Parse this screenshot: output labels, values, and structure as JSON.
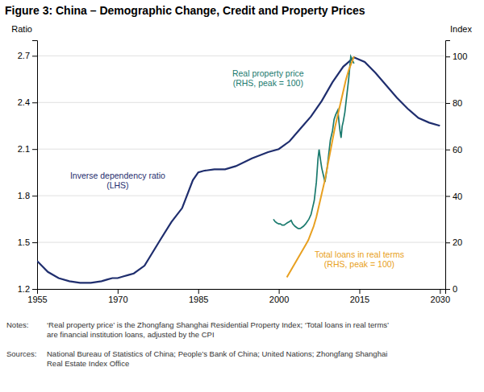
{
  "chart_data": {
    "type": "line",
    "title": "Figure 3: China – Demographic Change, Credit and Property Prices",
    "ylabel": "Ratio",
    "y2label": "Index",
    "xlim": [
      1955,
      2031
    ],
    "xticks": [
      1955,
      1970,
      1985,
      2000,
      2015,
      2030
    ],
    "ylim": [
      1.2,
      2.8
    ],
    "yticks": [
      1.2,
      1.5,
      1.8,
      2.1,
      2.4,
      2.7
    ],
    "y2lim": [
      0,
      107
    ],
    "y2ticks": [
      0,
      20,
      40,
      60,
      80,
      100
    ],
    "grid": true,
    "series": [
      {
        "name": "Inverse dependency ratio\n(LHS)",
        "color": "#1f2e6e",
        "axis": "y",
        "x": [
          1955,
          1957,
          1959,
          1961,
          1963,
          1965,
          1967,
          1968,
          1969,
          1970,
          1971,
          1972,
          1973,
          1975,
          1978,
          1980,
          1982,
          1984,
          1985,
          1986,
          1988,
          1990,
          1992,
          1995,
          1998,
          2000,
          2002,
          2004,
          2006,
          2008,
          2010,
          2012,
          2014,
          2016,
          2018,
          2020,
          2022,
          2024,
          2026,
          2028,
          2030
        ],
        "values": [
          1.38,
          1.31,
          1.27,
          1.25,
          1.24,
          1.24,
          1.25,
          1.26,
          1.27,
          1.27,
          1.28,
          1.29,
          1.3,
          1.35,
          1.52,
          1.63,
          1.72,
          1.9,
          1.95,
          1.96,
          1.97,
          1.97,
          1.99,
          2.04,
          2.08,
          2.1,
          2.15,
          2.23,
          2.31,
          2.41,
          2.53,
          2.63,
          2.69,
          2.66,
          2.59,
          2.51,
          2.43,
          2.36,
          2.3,
          2.27,
          2.25
        ]
      },
      {
        "name": "Real property price\n(RHS, peak = 100)",
        "color": "#1a7a6e",
        "axis": "y2",
        "x": [
          1999.0,
          1999.3,
          1999.6,
          2000.0,
          2000.3,
          2000.6,
          2001.0,
          2001.3,
          2001.6,
          2002.0,
          2002.3,
          2002.6,
          2003.0,
          2003.3,
          2003.6,
          2004.0,
          2004.3,
          2004.6,
          2005.0,
          2005.3,
          2005.6,
          2006.0,
          2006.3,
          2006.6,
          2007.0,
          2007.3,
          2007.5,
          2007.8,
          2008.0,
          2008.3,
          2008.6,
          2009.0,
          2009.3,
          2009.6,
          2010.0,
          2010.3,
          2010.6,
          2011.0,
          2011.2,
          2011.4,
          2011.6,
          2011.8,
          2012.0,
          2012.3,
          2012.6,
          2013.0,
          2013.2,
          2013.4,
          2013.6,
          2013.8,
          2014.0
        ],
        "values": [
          30,
          29,
          28.5,
          28,
          28,
          27.5,
          27.5,
          28,
          28.5,
          29,
          29.5,
          28,
          27,
          26.5,
          26,
          26,
          26.5,
          27,
          28,
          29,
          30,
          32,
          35,
          38,
          46,
          56,
          60,
          55,
          52,
          49,
          46,
          52,
          58,
          64,
          68,
          73,
          75,
          77,
          72,
          68,
          65,
          70,
          72,
          76,
          82,
          90,
          95,
          100,
          99,
          98,
          97
        ]
      },
      {
        "name": "Total loans in real terms\n(RHS, peak = 100)",
        "color": "#e8a020",
        "axis": "y2",
        "x": [
          2001.5,
          2002.0,
          2002.5,
          2003.0,
          2003.5,
          2004.0,
          2004.5,
          2005.0,
          2005.5,
          2006.0,
          2006.5,
          2007.0,
          2007.5,
          2008.0,
          2008.5,
          2009.0,
          2009.5,
          2010.0,
          2010.5,
          2011.0,
          2011.5,
          2012.0,
          2012.5,
          2013.0,
          2013.5,
          2014.0
        ],
        "values": [
          5,
          7,
          9,
          11,
          13,
          15,
          17,
          19,
          21,
          24,
          27,
          31,
          36,
          41,
          46,
          52,
          58,
          64,
          70,
          75,
          80,
          85,
          90,
          94,
          97,
          100
        ]
      }
    ],
    "annotations": [
      "Notes:",
      "‘Real property price’ is the Zhongfang Shanghai Residential Property Index; ‘Total loans in real terms’\nare financial institution loans, adjusted by the CPI",
      "Sources:",
      "National Bureau of Statistics of China; People’s Bank of China; United Nations; Zhongfang Shanghai\nReal Estate Index Office"
    ]
  }
}
